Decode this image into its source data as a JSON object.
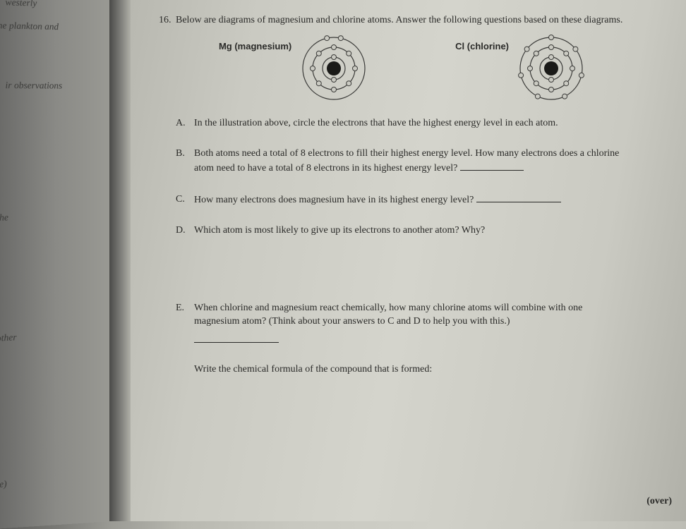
{
  "left_page": {
    "frag1": "westerly",
    "frag2": "the plankton and",
    "frag3": "ir observations",
    "frag4": "he",
    "frag5": "other",
    "frag6": "e)"
  },
  "question": {
    "number": "16.",
    "text": "Below are diagrams of magnesium and chlorine atoms.  Answer the following questions based on these diagrams."
  },
  "atoms": {
    "mg": {
      "label": "Mg (magnesium)",
      "shells": [
        {
          "r": 16,
          "electrons": 2
        },
        {
          "r": 30,
          "electrons": 8
        },
        {
          "r": 44,
          "electrons": 2,
          "positions": "top"
        }
      ],
      "nucleus_r": 10,
      "stroke": "#3a3a38",
      "fill": "#cacac2",
      "nucleus_fill": "#1a1a18",
      "electron_r": 3.5
    },
    "cl": {
      "label": "Cl (chlorine)",
      "shells": [
        {
          "r": 16,
          "electrons": 2
        },
        {
          "r": 30,
          "electrons": 8
        },
        {
          "r": 44,
          "electrons": 7
        }
      ],
      "nucleus_r": 10,
      "stroke": "#3a3a38",
      "fill": "#cacac2",
      "nucleus_fill": "#1a1a18",
      "electron_r": 3.5
    }
  },
  "sub": {
    "A": {
      "letter": "A.",
      "text": "In the illustration above, circle the electrons that have the highest energy level in each atom."
    },
    "B": {
      "letter": "B.",
      "text": "Both atoms need a total of 8 electrons to fill their highest energy level.   How many electrons does a chlorine atom need to have a total of 8 electrons in its highest energy level? "
    },
    "C": {
      "letter": "C.",
      "text": "How many electrons does magnesium have in its highest energy level? "
    },
    "D": {
      "letter": "D.",
      "text": "Which atom is most likely to give up its electrons to another atom?  Why?"
    },
    "E": {
      "letter": "E.",
      "text": "When chlorine and magnesium react chemically, how many chlorine atoms will combine with one magnesium atom? (Think about your answers to C and D to help you with this.)"
    },
    "formula": "Write the chemical formula of the compound that is formed:"
  },
  "footer": {
    "over": "(over)"
  }
}
